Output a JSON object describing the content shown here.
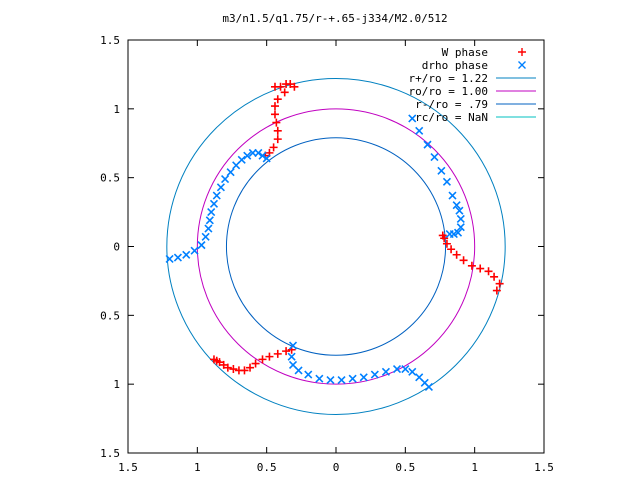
{
  "chart_data": {
    "type": "scatter",
    "title": "m3/n1.5/q1.75/r-+.65-j334/M2.0/512",
    "xlabel": "",
    "ylabel": "",
    "xlim": [
      -1.5,
      1.5
    ],
    "ylim": [
      -1.5,
      1.5
    ],
    "x_tick_values": [
      -1.5,
      -1,
      -0.5,
      0,
      0.5,
      1,
      1.5
    ],
    "x_tick_labels": [
      "1.5",
      "1",
      "0.5",
      "0",
      "0.5",
      "1",
      "1.5"
    ],
    "y_tick_values": [
      1.5,
      1,
      0.5,
      0,
      -0.5,
      -1,
      -1.5
    ],
    "y_tick_labels": [
      "1.5",
      "1",
      "0.5",
      "0",
      "0.5",
      "1",
      "1.5"
    ],
    "grid": false,
    "legend_position": "top-right",
    "series": [
      {
        "name": "W phase",
        "kind": "points",
        "marker": "plus",
        "color": "#ff0000",
        "points": [
          [
            -0.44,
            1.16
          ],
          [
            -0.4,
            1.16
          ],
          [
            -0.36,
            1.18
          ],
          [
            -0.33,
            1.18
          ],
          [
            -0.3,
            1.16
          ],
          [
            -0.37,
            1.12
          ],
          [
            -0.42,
            1.07
          ],
          [
            -0.44,
            1.02
          ],
          [
            -0.44,
            0.96
          ],
          [
            -0.43,
            0.9
          ],
          [
            -0.42,
            0.84
          ],
          [
            -0.42,
            0.78
          ],
          [
            -0.45,
            0.72
          ],
          [
            -0.48,
            0.68
          ],
          [
            -0.51,
            0.66
          ],
          [
            1.18,
            -0.27
          ],
          [
            1.16,
            -0.32
          ],
          [
            1.14,
            -0.22
          ],
          [
            1.1,
            -0.18
          ],
          [
            1.04,
            -0.16
          ],
          [
            0.98,
            -0.14
          ],
          [
            0.92,
            -0.1
          ],
          [
            0.87,
            -0.06
          ],
          [
            0.83,
            -0.02
          ],
          [
            0.8,
            0.02
          ],
          [
            0.78,
            0.06
          ],
          [
            0.77,
            0.08
          ],
          [
            -0.32,
            -0.75
          ],
          [
            -0.36,
            -0.76
          ],
          [
            -0.42,
            -0.78
          ],
          [
            -0.48,
            -0.8
          ],
          [
            -0.53,
            -0.82
          ],
          [
            -0.58,
            -0.85
          ],
          [
            -0.62,
            -0.88
          ],
          [
            -0.66,
            -0.9
          ],
          [
            -0.7,
            -0.9
          ],
          [
            -0.74,
            -0.89
          ],
          [
            -0.78,
            -0.88
          ],
          [
            -0.81,
            -0.86
          ],
          [
            -0.84,
            -0.84
          ],
          [
            -0.86,
            -0.83
          ],
          [
            -0.88,
            -0.82
          ]
        ]
      },
      {
        "name": "drho phase",
        "kind": "points",
        "marker": "cross",
        "color": "#0080ff",
        "points": [
          [
            -0.5,
            0.64
          ],
          [
            -0.53,
            0.66
          ],
          [
            -0.56,
            0.68
          ],
          [
            -0.6,
            0.68
          ],
          [
            -0.64,
            0.66
          ],
          [
            -0.68,
            0.63
          ],
          [
            -0.72,
            0.59
          ],
          [
            -0.76,
            0.54
          ],
          [
            -0.8,
            0.49
          ],
          [
            -0.83,
            0.43
          ],
          [
            -0.86,
            0.37
          ],
          [
            -0.88,
            0.31
          ],
          [
            -0.9,
            0.25
          ],
          [
            -0.91,
            0.19
          ],
          [
            -0.92,
            0.13
          ],
          [
            -0.94,
            0.07
          ],
          [
            -0.97,
            0.01
          ],
          [
            -1.02,
            -0.03
          ],
          [
            -1.08,
            -0.06
          ],
          [
            -1.14,
            -0.08
          ],
          [
            -1.2,
            -0.09
          ],
          [
            0.55,
            0.93
          ],
          [
            0.6,
            0.84
          ],
          [
            0.66,
            0.74
          ],
          [
            0.71,
            0.65
          ],
          [
            0.76,
            0.55
          ],
          [
            0.8,
            0.47
          ],
          [
            0.84,
            0.37
          ],
          [
            0.87,
            0.3
          ],
          [
            0.89,
            0.26
          ],
          [
            0.9,
            0.2
          ],
          [
            0.9,
            0.14
          ],
          [
            0.88,
            0.1
          ],
          [
            0.85,
            0.09
          ],
          [
            0.82,
            0.09
          ],
          [
            -0.31,
            -0.72
          ],
          [
            -0.32,
            -0.8
          ],
          [
            -0.31,
            -0.86
          ],
          [
            -0.27,
            -0.9
          ],
          [
            -0.2,
            -0.93
          ],
          [
            -0.12,
            -0.96
          ],
          [
            -0.04,
            -0.97
          ],
          [
            0.04,
            -0.97
          ],
          [
            0.12,
            -0.96
          ],
          [
            0.2,
            -0.95
          ],
          [
            0.28,
            -0.93
          ],
          [
            0.36,
            -0.91
          ],
          [
            0.44,
            -0.89
          ],
          [
            0.5,
            -0.89
          ],
          [
            0.55,
            -0.91
          ],
          [
            0.6,
            -0.95
          ],
          [
            0.64,
            -0.99
          ],
          [
            0.67,
            -1.02
          ]
        ]
      },
      {
        "name": "r+/ro = 1.22",
        "kind": "circle",
        "radius": 1.22,
        "color": "#0080c0"
      },
      {
        "name": "ro/ro = 1.00",
        "kind": "circle",
        "radius": 1.0,
        "color": "#c000c0"
      },
      {
        "name": "r-/ro = .79",
        "kind": "circle",
        "radius": 0.79,
        "color": "#0060c0"
      },
      {
        "name": "rc/ro = NaN",
        "kind": "circle",
        "radius": null,
        "color": "#00c0c0"
      }
    ]
  }
}
